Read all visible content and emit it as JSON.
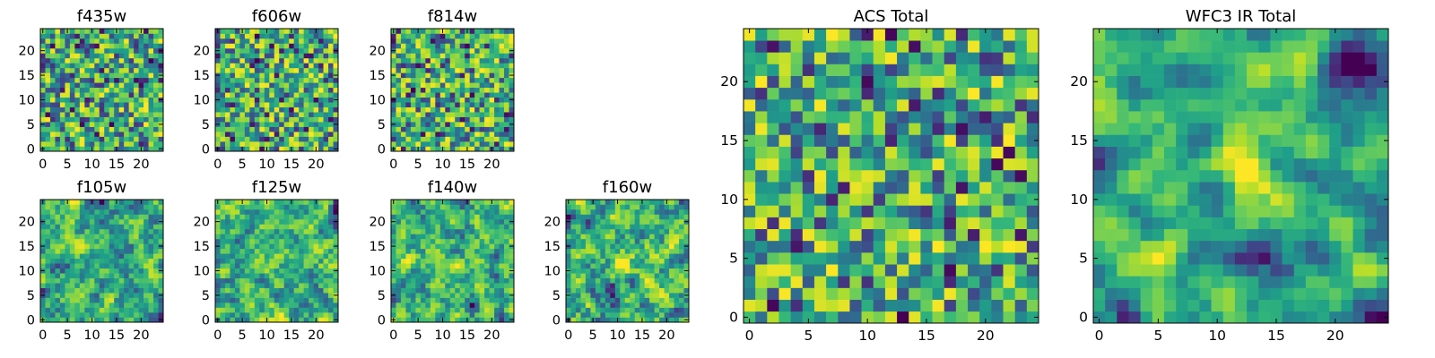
{
  "chart_data": [
    {
      "type": "heatmap",
      "title": "f435w",
      "xticks": [
        0,
        5,
        10,
        15,
        20
      ],
      "yticks": [
        0,
        5,
        10,
        15,
        20
      ],
      "xlim": [
        -0.5,
        24.5
      ],
      "ylim": [
        -0.5,
        24.5
      ],
      "grid_size": 25,
      "colormap": "viridis",
      "seed": 11,
      "smooth": 0,
      "blobs": []
    },
    {
      "type": "heatmap",
      "title": "f606w",
      "xticks": [
        0,
        5,
        10,
        15,
        20
      ],
      "yticks": [
        0,
        5,
        10,
        15,
        20
      ],
      "xlim": [
        -0.5,
        24.5
      ],
      "ylim": [
        -0.5,
        24.5
      ],
      "grid_size": 25,
      "colormap": "viridis",
      "seed": 23,
      "smooth": 0,
      "blobs": []
    },
    {
      "type": "heatmap",
      "title": "f814w",
      "xticks": [
        0,
        5,
        10,
        15,
        20
      ],
      "yticks": [
        0,
        5,
        10,
        15,
        20
      ],
      "xlim": [
        -0.5,
        24.5
      ],
      "ylim": [
        -0.5,
        24.5
      ],
      "grid_size": 25,
      "colormap": "viridis",
      "seed": 37,
      "smooth": 0,
      "blobs": []
    },
    {
      "type": "heatmap",
      "title": "f105w",
      "xticks": [
        0,
        5,
        10,
        15,
        20
      ],
      "yticks": [
        0,
        5,
        10,
        15,
        20
      ],
      "xlim": [
        -0.5,
        24.5
      ],
      "ylim": [
        -0.5,
        24.5
      ],
      "grid_size": 25,
      "colormap": "viridis",
      "seed": 41,
      "smooth": 1,
      "blobs": []
    },
    {
      "type": "heatmap",
      "title": "f125w",
      "xticks": [
        0,
        5,
        10,
        15,
        20
      ],
      "yticks": [
        0,
        5,
        10,
        15,
        20
      ],
      "xlim": [
        -0.5,
        24.5
      ],
      "ylim": [
        -0.5,
        24.5
      ],
      "grid_size": 25,
      "colormap": "viridis",
      "seed": 53,
      "smooth": 1,
      "blobs": []
    },
    {
      "type": "heatmap",
      "title": "f140w",
      "xticks": [
        0,
        5,
        10,
        15,
        20
      ],
      "yticks": [
        0,
        5,
        10,
        15,
        20
      ],
      "xlim": [
        -0.5,
        24.5
      ],
      "ylim": [
        -0.5,
        24.5
      ],
      "grid_size": 25,
      "colormap": "viridis",
      "seed": 67,
      "smooth": 1,
      "blobs": []
    },
    {
      "type": "heatmap",
      "title": "f160w",
      "xticks": [
        0,
        5,
        10,
        15,
        20
      ],
      "yticks": [
        0,
        5,
        10,
        15,
        20
      ],
      "xlim": [
        -0.5,
        24.5
      ],
      "ylim": [
        -0.5,
        24.5
      ],
      "grid_size": 25,
      "colormap": "viridis",
      "seed": 79,
      "smooth": 1,
      "blobs": [
        {
          "x": 12,
          "y": 12,
          "r": 1.6,
          "amp": 0.45
        }
      ]
    },
    {
      "type": "heatmap",
      "title": "ACS Total",
      "xticks": [
        0,
        5,
        10,
        15,
        20
      ],
      "yticks": [
        0,
        5,
        10,
        15,
        20
      ],
      "xlim": [
        -0.5,
        24.5
      ],
      "ylim": [
        -0.5,
        24.5
      ],
      "grid_size": 25,
      "colormap": "viridis",
      "seed": 97,
      "smooth": 0,
      "blobs": []
    },
    {
      "type": "heatmap",
      "title": "WFC3 IR Total",
      "xticks": [
        0,
        5,
        10,
        15,
        20
      ],
      "yticks": [
        0,
        5,
        10,
        15,
        20
      ],
      "xlim": [
        -0.5,
        24.5
      ],
      "ylim": [
        -0.5,
        24.5
      ],
      "grid_size": 25,
      "colormap": "viridis",
      "seed": 131,
      "smooth": 2,
      "blobs": [
        {
          "x": 12,
          "y": 12,
          "r": 1.8,
          "amp": 0.55
        },
        {
          "x": 22,
          "y": 21,
          "r": 1.6,
          "amp": -0.6
        }
      ]
    }
  ]
}
